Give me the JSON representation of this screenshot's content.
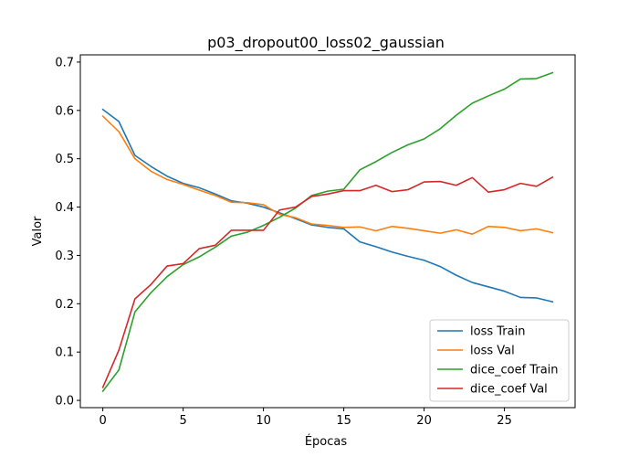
{
  "chart_data": {
    "type": "line",
    "title": "p03_dropout00_loss02_gaussian",
    "xlabel": "Épocas",
    "ylabel": "Valor",
    "xlim": [
      -1.4,
      29.4
    ],
    "ylim": [
      -0.015,
      0.715
    ],
    "xticks": [
      0,
      5,
      10,
      15,
      20,
      25
    ],
    "yticks": [
      0.0,
      0.1,
      0.2,
      0.3,
      0.4,
      0.5,
      0.6,
      0.7
    ],
    "grid": false,
    "legend_position": "lower-right",
    "x": [
      0,
      1,
      2,
      3,
      4,
      5,
      6,
      7,
      8,
      9,
      10,
      11,
      12,
      13,
      14,
      15,
      16,
      17,
      18,
      19,
      20,
      21,
      22,
      23,
      24,
      25,
      26,
      27,
      28
    ],
    "series": [
      {
        "name": "loss Train",
        "color": "#1f77b4",
        "values": [
          0.602,
          0.577,
          0.507,
          0.484,
          0.464,
          0.449,
          0.44,
          0.427,
          0.413,
          0.408,
          0.4,
          0.388,
          0.376,
          0.363,
          0.358,
          0.355,
          0.328,
          0.318,
          0.307,
          0.298,
          0.29,
          0.277,
          0.259,
          0.244,
          0.235,
          0.226,
          0.213,
          0.212,
          0.204
        ]
      },
      {
        "name": "loss Val",
        "color": "#ff7f0e",
        "values": [
          0.588,
          0.556,
          0.5,
          0.474,
          0.457,
          0.447,
          0.435,
          0.424,
          0.41,
          0.409,
          0.405,
          0.385,
          0.378,
          0.365,
          0.362,
          0.358,
          0.359,
          0.351,
          0.36,
          0.356,
          0.351,
          0.346,
          0.353,
          0.344,
          0.36,
          0.358,
          0.351,
          0.355,
          0.347
        ]
      },
      {
        "name": "dice_coef Train",
        "color": "#2ca02c",
        "values": [
          0.019,
          0.063,
          0.183,
          0.223,
          0.256,
          0.281,
          0.297,
          0.317,
          0.34,
          0.348,
          0.362,
          0.379,
          0.398,
          0.424,
          0.433,
          0.437,
          0.477,
          0.494,
          0.513,
          0.529,
          0.541,
          0.562,
          0.59,
          0.615,
          0.63,
          0.644,
          0.665,
          0.666,
          0.678
        ]
      },
      {
        "name": "dice_coef Val",
        "color": "#d62728",
        "values": [
          0.027,
          0.104,
          0.21,
          0.24,
          0.278,
          0.283,
          0.314,
          0.321,
          0.352,
          0.352,
          0.352,
          0.394,
          0.4,
          0.422,
          0.427,
          0.434,
          0.434,
          0.445,
          0.432,
          0.436,
          0.452,
          0.453,
          0.445,
          0.461,
          0.431,
          0.436,
          0.449,
          0.443,
          0.462
        ]
      }
    ]
  }
}
